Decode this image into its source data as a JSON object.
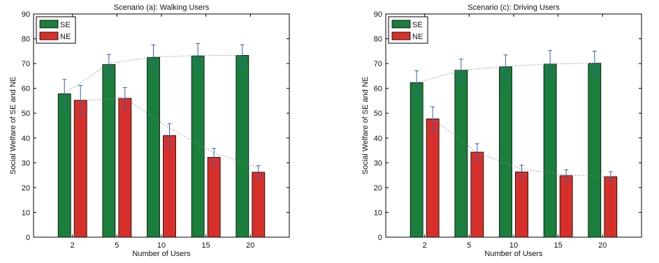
{
  "chart_data": [
    {
      "type": "bar",
      "title": "Scenario (a): Walking Users",
      "xlabel": "Number of Users",
      "ylabel": "Social Welfare of SE and NE",
      "categories": [
        "2",
        "5",
        "10",
        "15",
        "20"
      ],
      "ylim": [
        0,
        90
      ],
      "yticks": [
        0,
        10,
        20,
        30,
        40,
        50,
        60,
        70,
        80,
        90
      ],
      "grid": false,
      "legend_position": "top-left",
      "series": [
        {
          "name": "SE",
          "color": "#1a7f3c",
          "values": [
            57.8,
            69.6,
            72.5,
            73.1,
            73.3
          ],
          "error_upper": [
            63.6,
            73.7,
            77.5,
            78.1,
            77.6
          ],
          "error_lower": [
            52.0,
            65.5,
            67.5,
            68.1,
            69.0
          ]
        },
        {
          "name": "NE",
          "color": "#d7302a",
          "values": [
            55.2,
            56.0,
            41.0,
            32.2,
            26.2
          ],
          "error_upper": [
            61.2,
            60.3,
            45.8,
            35.8,
            28.8
          ],
          "error_lower": [
            49.2,
            51.7,
            36.2,
            28.6,
            23.6
          ]
        }
      ],
      "trend_lines": [
        [
          57.8,
          70.0,
          72.7,
          73.2,
          73.3
        ],
        [
          55.2,
          56.0,
          44.0,
          34.0,
          28.0
        ]
      ]
    },
    {
      "type": "bar",
      "title": "Scenario (c): Driving Users",
      "xlabel": "Number of Users",
      "ylabel": "Social Welfare of SE and NE",
      "categories": [
        "2",
        "5",
        "10",
        "15",
        "20"
      ],
      "ylim": [
        0,
        90
      ],
      "yticks": [
        0,
        10,
        20,
        30,
        40,
        50,
        60,
        70,
        80,
        90
      ],
      "grid": false,
      "legend_position": "top-left",
      "series": [
        {
          "name": "SE",
          "color": "#1a7f3c",
          "values": [
            62.3,
            67.3,
            68.7,
            69.8,
            70.1
          ],
          "error_upper": [
            67.1,
            71.8,
            73.5,
            75.3,
            75.0
          ],
          "error_lower": [
            57.5,
            62.8,
            63.9,
            64.3,
            65.2
          ]
        },
        {
          "name": "NE",
          "color": "#d7302a",
          "values": [
            47.7,
            34.3,
            26.3,
            24.8,
            24.4
          ],
          "error_upper": [
            52.6,
            37.7,
            29.0,
            27.2,
            26.4
          ],
          "error_lower": [
            42.8,
            30.9,
            23.6,
            22.4,
            22.4
          ]
        }
      ],
      "trend_lines": [
        [
          62.3,
          67.3,
          68.8,
          69.8,
          70.1
        ],
        [
          47.7,
          34.0,
          27.5,
          25.2,
          24.4
        ]
      ]
    }
  ]
}
